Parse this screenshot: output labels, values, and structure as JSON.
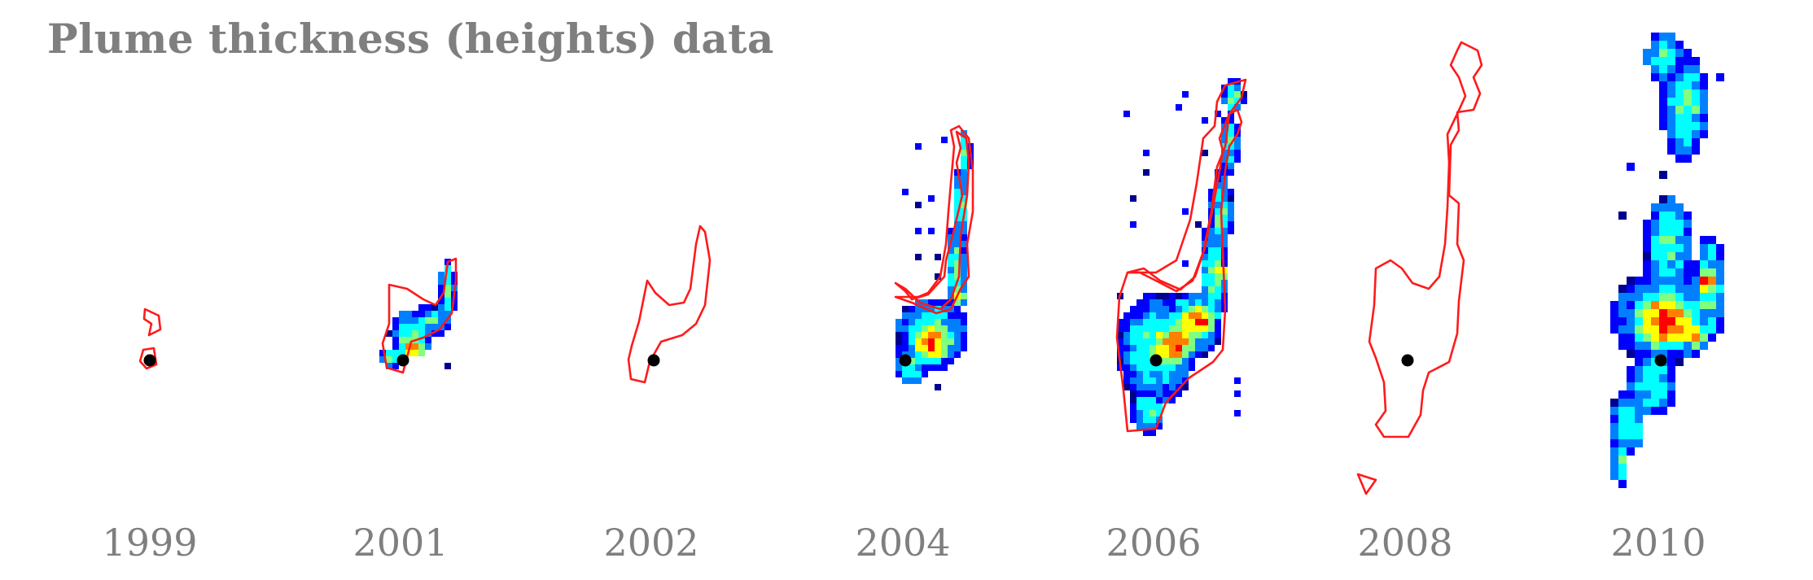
{
  "title": "Plume thickness (heights) data",
  "panels": [
    {
      "year": "1999",
      "data_shown": false,
      "outline_shown": true
    },
    {
      "year": "2001",
      "data_shown": true,
      "outline_shown": true
    },
    {
      "year": "2002",
      "data_shown": false,
      "outline_shown": true
    },
    {
      "year": "2004",
      "data_shown": true,
      "outline_shown": true
    },
    {
      "year": "2006",
      "data_shown": true,
      "outline_shown": true
    },
    {
      "year": "2008",
      "data_shown": false,
      "outline_shown": true
    },
    {
      "year": "2010",
      "data_shown": true,
      "outline_shown": false
    }
  ],
  "colors": {
    "outline": "#ff1a1a",
    "injection_point": "#000000",
    "label": "#7f7f7f",
    "colormap": [
      "#00008f",
      "#0000ff",
      "#0080ff",
      "#00ffff",
      "#80ff80",
      "#ffff00",
      "#ff8000",
      "#ff0000"
    ]
  }
}
